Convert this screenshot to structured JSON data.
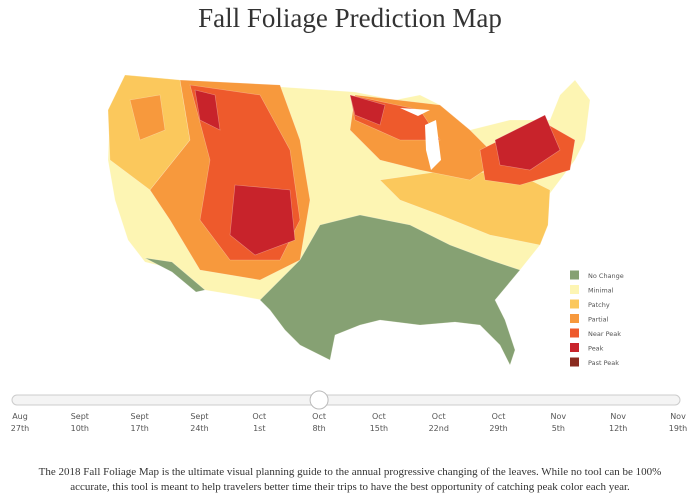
{
  "title": "Fall Foliage Prediction Map",
  "legend": [
    {
      "label": "No Change",
      "color": "#86a173"
    },
    {
      "label": "Minimal",
      "color": "#fdf5b3"
    },
    {
      "label": "Patchy",
      "color": "#fbc85c"
    },
    {
      "label": "Partial",
      "color": "#f7993d"
    },
    {
      "label": "Near Peak",
      "color": "#ee5a2c"
    },
    {
      "label": "Peak",
      "color": "#c8232b"
    },
    {
      "label": "Past Peak",
      "color": "#8a2b1f"
    }
  ],
  "slider": {
    "selected": 5,
    "dates": [
      {
        "month": "Aug",
        "day": "27th"
      },
      {
        "month": "Sept",
        "day": "10th"
      },
      {
        "month": "Sept",
        "day": "17th"
      },
      {
        "month": "Sept",
        "day": "24th"
      },
      {
        "month": "Oct",
        "day": "1st"
      },
      {
        "month": "Oct",
        "day": "8th"
      },
      {
        "month": "Oct",
        "day": "15th"
      },
      {
        "month": "Oct",
        "day": "22nd"
      },
      {
        "month": "Oct",
        "day": "29th"
      },
      {
        "month": "Nov",
        "day": "5th"
      },
      {
        "month": "Nov",
        "day": "12th"
      },
      {
        "month": "Nov",
        "day": "19th"
      }
    ]
  },
  "description": [
    "The 2018 Fall Foliage Map is the ultimate visual planning guide to the annual progressive changing of the leaves. While no tool can be 100%",
    "accurate, this tool is meant to help travelers better time their trips to have the best opportunity of catching peak color each year."
  ]
}
